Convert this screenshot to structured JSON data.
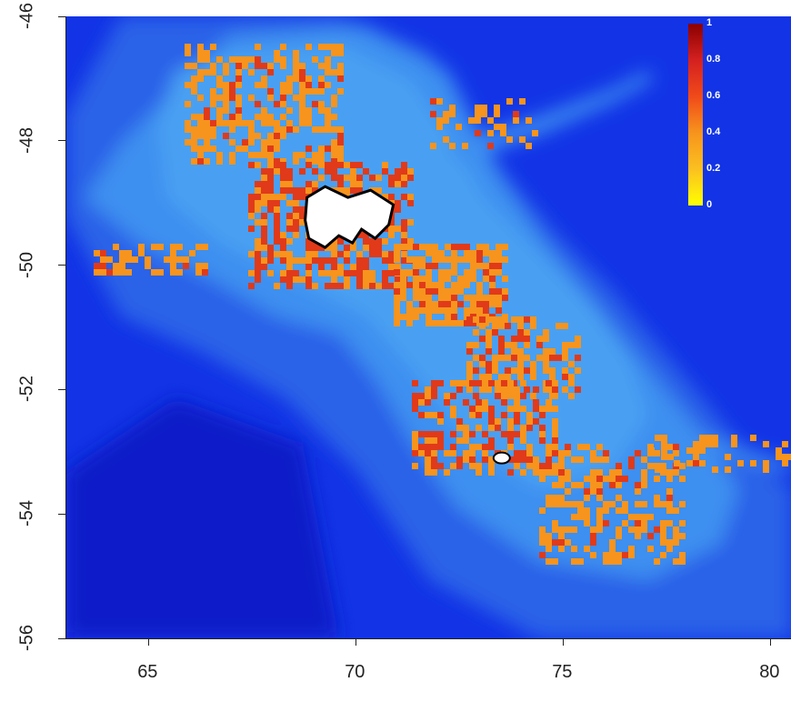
{
  "x_axis": {
    "range": [
      63,
      80.5
    ],
    "ticks": [
      "65",
      "70",
      "75",
      "80"
    ]
  },
  "y_axis": {
    "range": [
      -56,
      -46
    ],
    "ticks": [
      "-46",
      "-48",
      "-50",
      "-52",
      "-54",
      "-56"
    ]
  },
  "legend": {
    "labels": [
      "1",
      "0.8",
      "0.6",
      "0.4",
      "0.2",
      "0"
    ],
    "colors": [
      "#8b0000",
      "#d42020",
      "#f04a1a",
      "#f7941d",
      "#fbc020",
      "#ffff00"
    ]
  },
  "colors": {
    "deep_ocean": "#0a1ec8",
    "ocean": "#1234e6",
    "slope": "#2a62e8",
    "shelf": "#3d8ff0",
    "shallow_shelf": "#4aa0f2",
    "suitability_mid": "#f7941d",
    "suitability_high": "#e03a1a",
    "land": "#ffffff"
  },
  "islands": [
    {
      "name": "",
      "center": [
        69.9,
        -49.35
      ]
    },
    {
      "name": "",
      "center": [
        73.5,
        -53.1
      ]
    }
  ]
}
